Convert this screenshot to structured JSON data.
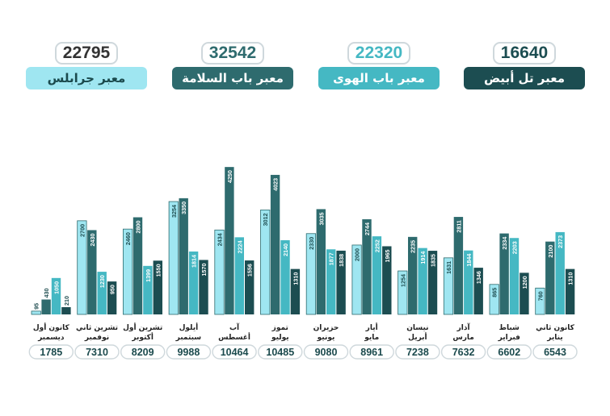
{
  "legend": [
    {
      "label": "معبر تل أبيض",
      "total": "16640",
      "color": "#1c4d51",
      "total_color": "#1c4d51"
    },
    {
      "label": "معبر باب الهوى",
      "total": "22320",
      "color": "#45b8c3",
      "total_color": "#45b8c3"
    },
    {
      "label": "معبر باب السلامة",
      "total": "32542",
      "color": "#2e6b6e",
      "total_color": "#2e6b6e"
    },
    {
      "label": "معبر جرابلس",
      "total": "22795",
      "color": "#9fe6f1",
      "total_color": "#333333"
    }
  ],
  "chart_data": {
    "type": "bar",
    "categories": [
      {
        "line1": "كانون ثاني",
        "line2": "يناير",
        "total": "6543"
      },
      {
        "line1": "شباط",
        "line2": "فبراير",
        "total": "6602"
      },
      {
        "line1": "آذار",
        "line2": "مارس",
        "total": "7632"
      },
      {
        "line1": "نيسان",
        "line2": "أبريل",
        "total": "7238"
      },
      {
        "line1": "أيار",
        "line2": "مايو",
        "total": "8961"
      },
      {
        "line1": "حزيران",
        "line2": "يونيو",
        "total": "9080"
      },
      {
        "line1": "تموز",
        "line2": "يوليو",
        "total": "10485"
      },
      {
        "line1": "آب",
        "line2": "أغسطس",
        "total": "10464"
      },
      {
        "line1": "أيلول",
        "line2": "سبتمبر",
        "total": "9988"
      },
      {
        "line1": "تشرين أول",
        "line2": "أكتوبر",
        "total": "8209"
      },
      {
        "line1": "تشرين ثاني",
        "line2": "نوفمبر",
        "total": "7310"
      },
      {
        "line1": "كانون أول",
        "line2": "ديسمبر",
        "total": "1785"
      }
    ],
    "series": [
      {
        "name": "معبر جرابلس",
        "color": "#9fe6f1",
        "values": [
          760,
          865,
          1631,
          1254,
          2000,
          2330,
          3012,
          2434,
          3254,
          2460,
          2700,
          95
        ]
      },
      {
        "name": "معبر باب السلامة",
        "color": "#2e6b6e",
        "values": [
          2100,
          2334,
          2811,
          2235,
          2744,
          3035,
          4023,
          4250,
          3350,
          2800,
          2430,
          430
        ]
      },
      {
        "name": "معبر باب الهوى",
        "color": "#45b8c3",
        "values": [
          2373,
          2203,
          1844,
          1914,
          2252,
          1877,
          2140,
          2224,
          1814,
          1399,
          1230,
          1050
        ]
      },
      {
        "name": "معبر تل أبيض",
        "color": "#1c4d51",
        "values": [
          1310,
          1200,
          1346,
          1835,
          1965,
          1838,
          1310,
          1556,
          1570,
          1550,
          950,
          210
        ]
      }
    ],
    "ylim": [
      0,
      4300
    ],
    "grid": false,
    "legend_position": "top"
  }
}
